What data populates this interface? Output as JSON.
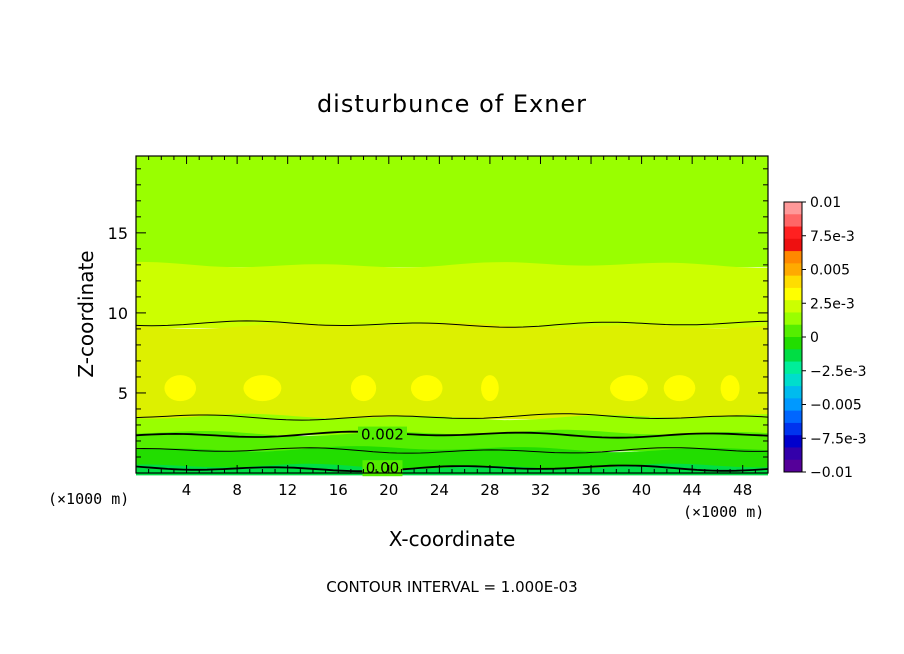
{
  "chart_data": {
    "type": "heatmap",
    "title": "disturbunce of Exner",
    "xlabel": "X-coordinate",
    "ylabel": "Z-coordinate",
    "x_unit_left": "(×1000 m)",
    "x_unit_right": "(×1000 m)",
    "xlim": [
      0,
      50
    ],
    "ylim": [
      0,
      19.8
    ],
    "x_ticks": [
      4,
      8,
      12,
      16,
      20,
      24,
      28,
      32,
      36,
      40,
      44,
      48
    ],
    "y_ticks": [
      5,
      10,
      15
    ],
    "footer": "CONTOUR INTERVAL = 1.000E-03",
    "colorbar": {
      "labels": [
        "0.01",
        "7.5e-3",
        "0.005",
        "2.5e-3",
        "0",
        "−2.5e-3",
        "−0.005",
        "−7.5e-3",
        "−0.01"
      ],
      "label_values": [
        0.01,
        0.0075,
        0.005,
        0.0025,
        0,
        -0.0025,
        -0.005,
        -0.0075,
        -0.01
      ],
      "colors_top_to_bottom": [
        "#ff9999",
        "#ff6666",
        "#ff2020",
        "#ee1010",
        "#ff8800",
        "#ffaa00",
        "#ffdd00",
        "#ffff00",
        "#ccff00",
        "#99ff00",
        "#55ee00",
        "#22dd00",
        "#00dd44",
        "#00ee99",
        "#00ddcc",
        "#00bbee",
        "#0099ff",
        "#0066ff",
        "#0033ee",
        "#0000cc",
        "#3300aa",
        "#550099"
      ]
    },
    "field_bands": [
      {
        "z_from": 13.0,
        "z_to": 19.8,
        "color": "#99ff00"
      },
      {
        "z_from": 9.2,
        "z_to": 13.0,
        "color": "#ccff00"
      },
      {
        "z_from": 3.5,
        "z_to": 9.2,
        "color": "#ddf000"
      },
      {
        "z_from": 2.5,
        "z_to": 3.5,
        "color": "#99ff00"
      },
      {
        "z_from": 1.5,
        "z_to": 2.5,
        "color": "#55ee00"
      },
      {
        "z_from": 0.4,
        "z_to": 1.5,
        "color": "#22dd00"
      },
      {
        "z_from": 0.0,
        "z_to": 0.4,
        "color": "#00dd44"
      }
    ],
    "max_patch_color": "#ffff00",
    "contours": [
      {
        "z": 9.3,
        "label": ""
      },
      {
        "z": 3.5,
        "label": ""
      },
      {
        "z": 2.4,
        "label": "0.002"
      },
      {
        "z": 1.4,
        "label": ""
      },
      {
        "z": 0.3,
        "label": "0.00"
      }
    ]
  }
}
